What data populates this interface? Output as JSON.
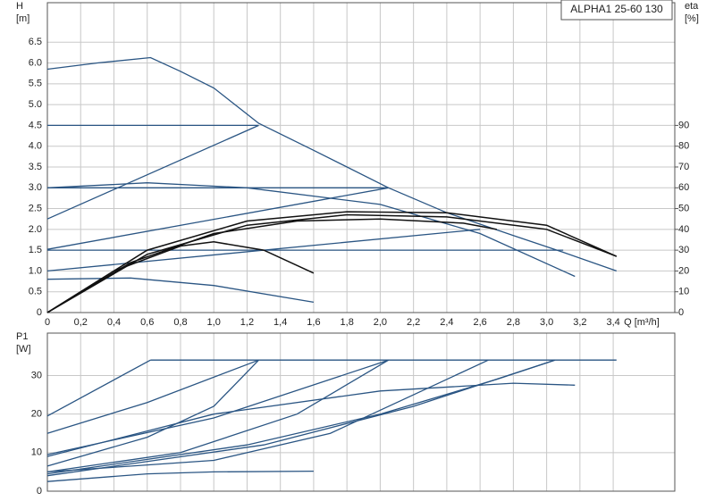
{
  "chart_data": [
    {
      "type": "line",
      "title": "ALPHA1 25-60 130",
      "y_label": "H",
      "y_unit": "[m]",
      "y2_label": "eta",
      "y2_unit": "[%]",
      "x_label": "Q [m³/h]",
      "xlim": [
        0,
        3.77
      ],
      "ylim": [
        0,
        7.45
      ],
      "y2lim": [
        0,
        149
      ],
      "xticks": [
        0,
        {
          "value": 0.2,
          "label": "0,2"
        },
        {
          "value": 0.4,
          "label": "0,4"
        },
        {
          "value": 0.6,
          "label": "0,6"
        },
        {
          "value": 0.8,
          "label": "0,8"
        },
        {
          "value": 1.0,
          "label": "1,0"
        },
        {
          "value": 1.2,
          "label": "1,2"
        },
        {
          "value": 1.4,
          "label": "1,4"
        },
        {
          "value": 1.6,
          "label": "1,6"
        },
        {
          "value": 1.8,
          "label": "1,8"
        },
        {
          "value": 2.0,
          "label": "2,0"
        },
        {
          "value": 2.2,
          "label": "2,2"
        },
        {
          "value": 2.4,
          "label": "2,4"
        },
        {
          "value": 2.6,
          "label": "2,6"
        },
        {
          "value": 2.8,
          "label": "2,8"
        },
        {
          "value": 3.0,
          "label": "3,0"
        },
        {
          "value": 3.2,
          "label": "3,2"
        },
        {
          "value": 3.4,
          "label": "3,4"
        }
      ],
      "yticks": [
        0,
        0.5,
        {
          "value": 1,
          "label": "1.0"
        },
        1.5,
        {
          "value": 2,
          "label": "2.0"
        },
        2.5,
        {
          "value": 3,
          "label": "3.0"
        },
        3.5,
        {
          "value": 4,
          "label": "4.0"
        },
        4.5,
        {
          "value": 5,
          "label": "5.0"
        },
        5.5,
        {
          "value": 6,
          "label": "6.0"
        },
        6.5
      ],
      "y2ticks": [
        0,
        10,
        20,
        30,
        40,
        50,
        60,
        70,
        80,
        90
      ],
      "grid": true,
      "series": [
        {
          "color": "#2a5583",
          "x": [
            0,
            0.3,
            0.62,
            0.8,
            1.0,
            1.27,
            1.6,
            2.05,
            2.4,
            2.8,
            3.1,
            3.42
          ],
          "values": [
            5.85,
            6.0,
            6.13,
            5.8,
            5.4,
            4.55,
            3.9,
            3.0,
            2.4,
            1.85,
            1.45,
            1.0
          ]
        },
        {
          "color": "#2a5583",
          "x": [
            0,
            1.27
          ],
          "values": [
            4.5,
            4.5
          ]
        },
        {
          "color": "#2a5583",
          "x": [
            0,
            1.27
          ],
          "values": [
            2.25,
            4.5
          ]
        },
        {
          "color": "#2a5583",
          "x": [
            0,
            2.05
          ],
          "values": [
            3.0,
            3.0
          ]
        },
        {
          "color": "#2a5583",
          "x": [
            0,
            2.05
          ],
          "values": [
            1.52,
            3.0
          ]
        },
        {
          "color": "#2a5583",
          "x": [
            0,
            0.6,
            1.2,
            2.0,
            2.6,
            3.17
          ],
          "values": [
            3.0,
            3.12,
            3.0,
            2.6,
            1.9,
            0.87
          ]
        },
        {
          "color": "#2a5583",
          "x": [
            0,
            3.1
          ],
          "values": [
            1.5,
            1.5
          ]
        },
        {
          "color": "#2a5583",
          "x": [
            0,
            2.6
          ],
          "values": [
            1.0,
            2.0
          ]
        },
        {
          "color": "#2a5583",
          "x": [
            0,
            0.5,
            1.0,
            1.6
          ],
          "values": [
            0.8,
            0.83,
            0.65,
            0.25
          ]
        },
        {
          "color": "#111111",
          "axis": "y2",
          "x": [
            0,
            0.4,
            0.8,
            1.0,
            1.3,
            1.6
          ],
          "values": [
            0,
            20,
            32,
            34,
            30,
            19
          ]
        },
        {
          "color": "#111111",
          "axis": "y2",
          "x": [
            0,
            0.5,
            1.0,
            1.5,
            2.0,
            2.5,
            2.7
          ],
          "values": [
            0,
            24,
            38,
            44,
            45,
            43,
            40
          ]
        },
        {
          "color": "#111111",
          "axis": "y2",
          "x": [
            0,
            0.6,
            1.2,
            1.8,
            2.4,
            3.0,
            3.42
          ],
          "values": [
            0,
            30,
            44,
            48.5,
            48,
            42,
            27
          ]
        },
        {
          "color": "#111111",
          "axis": "y2",
          "x": [
            0,
            0.6,
            1.2,
            1.8,
            2.4,
            3.0,
            3.42
          ],
          "values": [
            0,
            28,
            42,
            47,
            46,
            40,
            27
          ]
        }
      ]
    },
    {
      "type": "line",
      "y_label": "P1",
      "y_unit": "[W]",
      "xlim": [
        0,
        3.77
      ],
      "ylim": [
        0,
        41
      ],
      "yticks": [
        0,
        10,
        20,
        30
      ],
      "grid": true,
      "series": [
        {
          "color": "#2a5583",
          "x": [
            0,
            0.62
          ],
          "values": [
            19.5,
            34
          ]
        },
        {
          "color": "#2a5583",
          "x": [
            0.62,
            3.42
          ],
          "values": [
            34,
            34
          ]
        },
        {
          "color": "#2a5583",
          "x": [
            0,
            0.6,
            1.27
          ],
          "values": [
            15,
            23,
            34
          ]
        },
        {
          "color": "#2a5583",
          "x": [
            0,
            0.6,
            1.0,
            1.27
          ],
          "values": [
            6.5,
            14,
            22,
            34
          ]
        },
        {
          "color": "#2a5583",
          "x": [
            0,
            1.0,
            2.05
          ],
          "values": [
            9.5,
            19,
            34
          ]
        },
        {
          "color": "#2a5583",
          "x": [
            0,
            0.8,
            1.5,
            2.05
          ],
          "values": [
            5,
            10,
            20,
            34
          ]
        },
        {
          "color": "#2a5583",
          "x": [
            0,
            1.0,
            2.0,
            2.8,
            3.17
          ],
          "values": [
            9,
            20,
            26,
            28,
            27.5
          ]
        },
        {
          "color": "#2a5583",
          "x": [
            0,
            1.0,
            1.7,
            2.65
          ],
          "values": [
            5,
            8,
            15,
            34
          ]
        },
        {
          "color": "#2a5583",
          "x": [
            0,
            1.2,
            2.0,
            2.7,
            3.05
          ],
          "values": [
            4.5,
            12,
            20,
            29,
            34
          ]
        },
        {
          "color": "#2a5583",
          "x": [
            0,
            1.3,
            2.2,
            3.05
          ],
          "values": [
            4,
            12,
            22,
            34
          ]
        },
        {
          "color": "#2a5583",
          "x": [
            0,
            0.6,
            1.0,
            1.6
          ],
          "values": [
            2.5,
            4.5,
            5,
            5.2
          ]
        }
      ]
    }
  ]
}
